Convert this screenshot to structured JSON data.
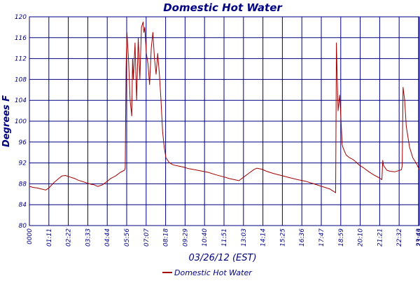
{
  "chart_data": {
    "type": "line",
    "title": "Domestic Hot Water",
    "xlabel": "03/26/12 (EST)",
    "ylabel": "Degrees F",
    "ylim": [
      80,
      120
    ],
    "y_ticks": [
      "80",
      "84",
      "88",
      "92",
      "96",
      "100",
      "104",
      "108",
      "112",
      "116",
      "120"
    ],
    "x_ticks": [
      "0000",
      "01:11",
      "02:22",
      "03:33",
      "04:44",
      "05:56",
      "07:07",
      "08:18",
      "09:29",
      "10:40",
      "11:51",
      "13:03",
      "14:14",
      "15:25",
      "16:36",
      "17:47",
      "18:59",
      "20:10",
      "21:21",
      "22:32",
      "23:43",
      "23:59"
    ],
    "grid": true,
    "legend_position": "bottom",
    "colors": {
      "series": "#a00000",
      "grid": "#000080",
      "text": "#000080"
    },
    "series": [
      {
        "name": "Domestic Hot Water",
        "x_hours": [
          0.0,
          0.25,
          0.5,
          0.75,
          1.0,
          1.2,
          1.5,
          1.8,
          2.0,
          2.2,
          2.5,
          2.8,
          3.0,
          3.3,
          3.6,
          3.8,
          4.0,
          4.2,
          4.5,
          4.8,
          5.0,
          5.3,
          5.6,
          5.85,
          5.9,
          5.95,
          6.0,
          6.1,
          6.2,
          6.3,
          6.35,
          6.4,
          6.5,
          6.6,
          6.7,
          6.8,
          6.9,
          7.0,
          7.05,
          7.1,
          7.2,
          7.3,
          7.4,
          7.5,
          7.6,
          7.7,
          7.8,
          7.9,
          8.0,
          8.1,
          8.2,
          8.3,
          8.4,
          8.6,
          8.8,
          9.0,
          9.2,
          9.5,
          9.8,
          10.0,
          10.5,
          11.0,
          11.5,
          12.0,
          12.3,
          12.6,
          12.9,
          13.2,
          13.5,
          13.8,
          14.0,
          14.3,
          14.6,
          15.0,
          15.5,
          16.0,
          16.5,
          17.0,
          17.5,
          18.0,
          18.5,
          18.8,
          18.85,
          18.9,
          18.95,
          19.0,
          19.1,
          19.2,
          19.25,
          19.3,
          19.4,
          19.5,
          19.7,
          19.9,
          20.1,
          20.3,
          20.6,
          20.9,
          21.2,
          21.5,
          21.7,
          21.75,
          21.8,
          22.0,
          22.2,
          22.5,
          22.7,
          22.9,
          22.95,
          23.0,
          23.1,
          23.2,
          23.4,
          23.6,
          23.8,
          23.99
        ],
        "values": [
          87.5,
          87.3,
          87.2,
          87.0,
          86.8,
          87.2,
          88.2,
          89.0,
          89.5,
          89.6,
          89.3,
          89.0,
          88.7,
          88.4,
          88.1,
          87.9,
          87.8,
          87.5,
          87.8,
          88.5,
          89.0,
          89.5,
          90.2,
          90.6,
          91.0,
          110.0,
          117.0,
          112.0,
          104.0,
          101.0,
          112.0,
          108.0,
          115.0,
          104.0,
          116.0,
          108.0,
          118.0,
          119.0,
          117.0,
          118.0,
          113.0,
          111.0,
          107.0,
          114.0,
          117.0,
          112.0,
          109.0,
          113.0,
          109.0,
          104.0,
          98.0,
          95.0,
          93.0,
          92.1,
          91.7,
          91.5,
          91.4,
          91.2,
          90.9,
          90.8,
          90.5,
          90.2,
          89.7,
          89.3,
          89.0,
          88.8,
          88.6,
          89.3,
          90.0,
          90.7,
          91.0,
          90.8,
          90.4,
          90.0,
          89.6,
          89.2,
          88.8,
          88.5,
          88.0,
          87.5,
          87.0,
          86.4,
          86.3,
          115.0,
          108.0,
          102.0,
          105.0,
          99.0,
          95.5,
          95.0,
          94.2,
          93.5,
          93.0,
          92.7,
          92.2,
          91.6,
          91.0,
          90.3,
          89.7,
          89.2,
          88.8,
          92.5,
          91.5,
          90.6,
          90.4,
          90.3,
          90.5,
          90.7,
          91.5,
          106.5,
          104.0,
          99.0,
          95.0,
          93.0,
          92.0,
          90.8
        ]
      }
    ]
  }
}
